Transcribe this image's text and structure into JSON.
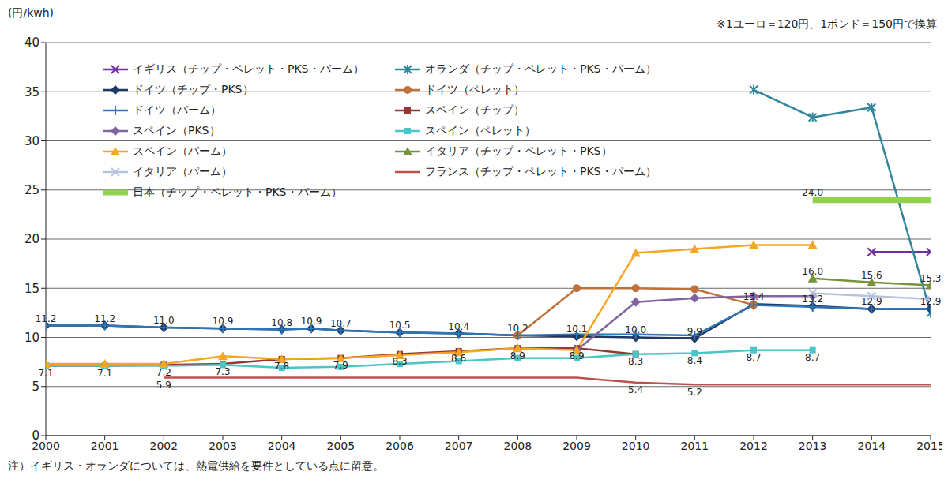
{
  "chart_data": {
    "type": "line",
    "y_label": "(円/kwh)",
    "subtitle": "※1ユーロ＝120円、1ポンド＝150円で換算",
    "footnote": "注）イギリス・オランダについては、熱電供給を要件としている点に留意。",
    "xlim": [
      2000,
      2015
    ],
    "xticks": [
      2000,
      2001,
      2002,
      2003,
      2004,
      2005,
      2006,
      2007,
      2008,
      2009,
      2010,
      2011,
      2012,
      2013,
      2014,
      2015
    ],
    "ylim": [
      0,
      40
    ],
    "yticks": [
      0,
      5,
      10,
      15,
      20,
      25,
      30,
      35,
      40
    ],
    "grid": true,
    "legend": "top-left",
    "series": [
      {
        "name": "イギリス（チップ・ペレット・PKS・パーム）",
        "color": "#7030a0",
        "marker": "x",
        "x": [
          2014,
          2015
        ],
        "values": [
          18.7,
          18.7
        ]
      },
      {
        "name": "オランダ（チップ・ペレット・PKS・パーム）",
        "color": "#31859c",
        "marker": "star",
        "x": [
          2012,
          2013,
          2014,
          2015
        ],
        "values": [
          35.2,
          32.4,
          33.4,
          12.5
        ]
      },
      {
        "name": "ドイツ（チップ・PKS）",
        "color": "#1f3864",
        "marker": "diamond",
        "x": [
          2000,
          2001,
          2002,
          2003,
          2004,
          2004.5,
          2005,
          2006,
          2007,
          2008,
          2009,
          2010,
          2011,
          2012,
          2013,
          2014,
          2015
        ],
        "values": [
          11.2,
          11.2,
          11.0,
          10.9,
          10.8,
          10.9,
          10.7,
          10.5,
          10.4,
          10.2,
          10.1,
          10.0,
          9.9,
          13.4,
          13.2,
          12.9,
          12.9
        ]
      },
      {
        "name": "ドイツ（ペレット）",
        "color": "#c0713b",
        "marker": "circle",
        "x": [
          2008,
          2009,
          2010,
          2011,
          2012
        ],
        "values": [
          10.2,
          15.0,
          15.0,
          14.9,
          13.3
        ]
      },
      {
        "name": "ドイツ（パーム）",
        "color": "#2e75b6",
        "marker": "plus",
        "x": [
          2000,
          2001,
          2002,
          2003,
          2004,
          2004.5,
          2005,
          2006,
          2007,
          2008,
          2009,
          2010,
          2011,
          2012,
          2013,
          2014,
          2015
        ],
        "values": [
          11.2,
          11.2,
          11.0,
          10.9,
          10.8,
          10.9,
          10.7,
          10.5,
          10.4,
          10.2,
          10.3,
          10.3,
          10.2,
          13.3,
          13.1,
          12.9,
          12.9
        ]
      },
      {
        "name": "スペイン（チップ）",
        "color": "#953735",
        "marker": "square",
        "x": [
          2000,
          2001,
          2002,
          2003,
          2004,
          2005,
          2006,
          2007,
          2008,
          2009,
          2010
        ],
        "values": [
          7.1,
          7.1,
          7.2,
          7.3,
          7.8,
          7.9,
          8.3,
          8.6,
          8.9,
          8.9,
          8.3
        ]
      },
      {
        "name": "スペイン（PKS）",
        "color": "#8064a2",
        "marker": "diamond",
        "x": [
          2009,
          2010,
          2011,
          2012,
          2013
        ],
        "values": [
          8.7,
          13.6,
          14.0,
          14.2,
          14.2
        ]
      },
      {
        "name": "スペイン（ペレット）",
        "color": "#4bc6c6",
        "marker": "square",
        "x": [
          2000,
          2001,
          2002,
          2003,
          2004,
          2005,
          2006,
          2007,
          2008,
          2009,
          2010,
          2011,
          2012,
          2013
        ],
        "values": [
          7.1,
          7.1,
          7.1,
          7.2,
          6.9,
          7.0,
          7.3,
          7.6,
          7.9,
          7.9,
          8.3,
          8.4,
          8.7,
          8.7
        ]
      },
      {
        "name": "スペイン（パーム）",
        "color": "#f5a623",
        "marker": "triangle",
        "x": [
          2000,
          2001,
          2002,
          2003,
          2004,
          2005,
          2006,
          2007,
          2008,
          2009,
          2010,
          2011,
          2012,
          2013
        ],
        "values": [
          7.3,
          7.3,
          7.3,
          8.1,
          7.8,
          7.9,
          8.2,
          8.5,
          8.9,
          8.7,
          18.6,
          19.0,
          19.4,
          19.4
        ]
      },
      {
        "name": "イタリア（チップ・ペレット・PKS）",
        "color": "#77933c",
        "marker": "triangle",
        "x": [
          2013,
          2014,
          2015
        ],
        "values": [
          16.0,
          15.6,
          15.3
        ]
      },
      {
        "name": "イタリア（パーム）",
        "color": "#b4c3de",
        "marker": "x",
        "x": [
          2013,
          2014,
          2015
        ],
        "values": [
          14.5,
          14.2,
          13.9
        ]
      },
      {
        "name": "フランス（チップ・ペレット・PKS・パーム）",
        "color": "#c0504d",
        "marker": "none",
        "x": [
          2002,
          2009,
          2010,
          2011,
          2012,
          2013,
          2014,
          2015
        ],
        "values": [
          5.9,
          5.9,
          5.4,
          5.2,
          5.2,
          5.2,
          5.2,
          5.2
        ]
      },
      {
        "name": "日本（チップ・ペレット・PKS・パーム）",
        "color": "#92d050",
        "marker": "none",
        "line_style": "thick",
        "x": [
          2013,
          2015
        ],
        "values": [
          24.0,
          24.0
        ]
      }
    ],
    "annotations": [
      {
        "x": 2000,
        "value": 11.2,
        "label": "11.2"
      },
      {
        "x": 2001,
        "value": 11.2,
        "label": "11.2"
      },
      {
        "x": 2002,
        "value": 11.0,
        "label": "11.0"
      },
      {
        "x": 2003,
        "value": 10.9,
        "label": "10.9"
      },
      {
        "x": 2004,
        "value": 10.8,
        "label": "10.8"
      },
      {
        "x": 2004.5,
        "value": 10.9,
        "label": "10.9"
      },
      {
        "x": 2005,
        "value": 10.7,
        "label": "10.7"
      },
      {
        "x": 2006,
        "value": 10.5,
        "label": "10.5"
      },
      {
        "x": 2007,
        "value": 10.4,
        "label": "10.4"
      },
      {
        "x": 2008,
        "value": 10.2,
        "label": "10.2"
      },
      {
        "x": 2009,
        "value": 10.1,
        "label": "10.1"
      },
      {
        "x": 2010,
        "value": 10.0,
        "label": "10.0"
      },
      {
        "x": 2011,
        "value": 9.9,
        "label": "9.9"
      },
      {
        "x": 2012,
        "value": 13.4,
        "label": "13.4"
      },
      {
        "x": 2013,
        "value": 13.2,
        "label": "13.2"
      },
      {
        "x": 2014,
        "value": 12.9,
        "label": "12.9"
      },
      {
        "x": 2015,
        "value": 12.9,
        "label": "12.9"
      },
      {
        "x": 2000,
        "value": 7.1,
        "label": "7.1"
      },
      {
        "x": 2001,
        "value": 7.1,
        "label": "7.1"
      },
      {
        "x": 2002,
        "value": 7.2,
        "label": "7.2"
      },
      {
        "x": 2002,
        "value": 5.9,
        "label": "5.9"
      },
      {
        "x": 2003,
        "value": 7.3,
        "label": "7.3"
      },
      {
        "x": 2004,
        "value": 7.8,
        "label": "7.8"
      },
      {
        "x": 2005,
        "value": 7.9,
        "label": "7.9"
      },
      {
        "x": 2006,
        "value": 8.3,
        "label": "8.3"
      },
      {
        "x": 2007,
        "value": 8.6,
        "label": "8.6"
      },
      {
        "x": 2008,
        "value": 8.9,
        "label": "8.9"
      },
      {
        "x": 2009,
        "value": 8.9,
        "label": "8.9"
      },
      {
        "x": 2010,
        "value": 8.3,
        "label": "8.3"
      },
      {
        "x": 2011,
        "value": 8.4,
        "label": "8.4"
      },
      {
        "x": 2012,
        "value": 8.7,
        "label": "8.7"
      },
      {
        "x": 2013,
        "value": 8.7,
        "label": "8.7"
      },
      {
        "x": 2010,
        "value": 5.4,
        "label": "5.4"
      },
      {
        "x": 2011,
        "value": 5.2,
        "label": "5.2"
      },
      {
        "x": 2013,
        "value": 16.0,
        "label": "16.0"
      },
      {
        "x": 2014,
        "value": 15.6,
        "label": "15.6"
      },
      {
        "x": 2015,
        "value": 15.3,
        "label": "15.3"
      },
      {
        "x": 2013,
        "value": 24.0,
        "label": "24.0"
      }
    ]
  }
}
